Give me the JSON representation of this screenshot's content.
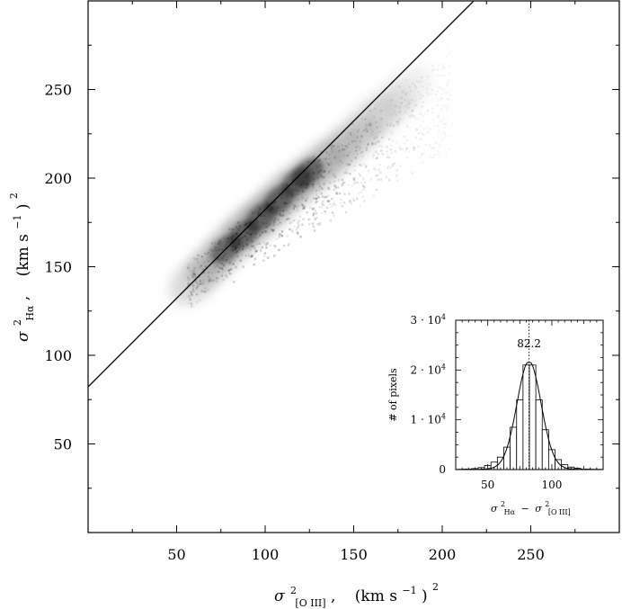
{
  "chart_data": [
    {
      "type": "heatmap",
      "title": "",
      "xlabel_parts": {
        "sym": "σ",
        "sup": "2",
        "sub": "[O III]",
        "unit": "(km s",
        "unit_sup": "−1",
        "close": ")",
        "close_sup": "2",
        "sep": ","
      },
      "ylabel_parts": {
        "sym": "σ",
        "sup": "2",
        "sub": "Hα",
        "unit": "(km s",
        "unit_sup": "−1",
        "close": ")",
        "close_sup": "2",
        "sep": ","
      },
      "xlim": [
        0,
        300
      ],
      "ylim": [
        0,
        300
      ],
      "xticks": [
        50,
        100,
        150,
        200,
        250
      ],
      "yticks": [
        50,
        100,
        150,
        200,
        250
      ],
      "fit_line": {
        "slope": 1,
        "intercept": 82.2
      },
      "density_core": {
        "x": [
          60,
          70,
          80,
          90,
          100,
          110,
          120,
          130,
          140,
          150,
          160,
          170,
          180
        ],
        "y": [
          142,
          152,
          162,
          172,
          180,
          190,
          198,
          206,
          214,
          222,
          232,
          240,
          250
        ],
        "peak": [
          100,
          182
        ]
      },
      "grid": false
    },
    {
      "type": "bar",
      "title": "",
      "xlabel_parts": {
        "sym1": "σ",
        "sup1": "2",
        "sub1": "Hα",
        "minus": "−",
        "sym2": "σ",
        "sup2": "2",
        "sub2": "[O III]"
      },
      "ylabel": "# of pixels",
      "annotation": "82.2",
      "xlim": [
        25,
        140
      ],
      "ylim": [
        0,
        30000
      ],
      "xticks": [
        50,
        100
      ],
      "yticks": [
        {
          "value": 0,
          "label": "0",
          "exp": ""
        },
        {
          "value": 10000,
          "label": "1 · 10",
          "exp": "4"
        },
        {
          "value": 20000,
          "label": "2 · 10",
          "exp": "4"
        },
        {
          "value": 30000,
          "label": "3 · 10",
          "exp": "4"
        }
      ],
      "bin_width": 5,
      "bins_center": [
        30,
        35,
        40,
        45,
        50,
        55,
        60,
        65,
        70,
        75,
        80,
        85,
        90,
        95,
        100,
        105,
        110,
        115,
        120,
        125,
        130,
        135
      ],
      "counts": [
        50,
        100,
        200,
        400,
        800,
        1500,
        2500,
        4500,
        8500,
        14000,
        21000,
        21000,
        14000,
        8000,
        4000,
        2000,
        1000,
        500,
        250,
        100,
        50,
        30
      ]
    }
  ]
}
